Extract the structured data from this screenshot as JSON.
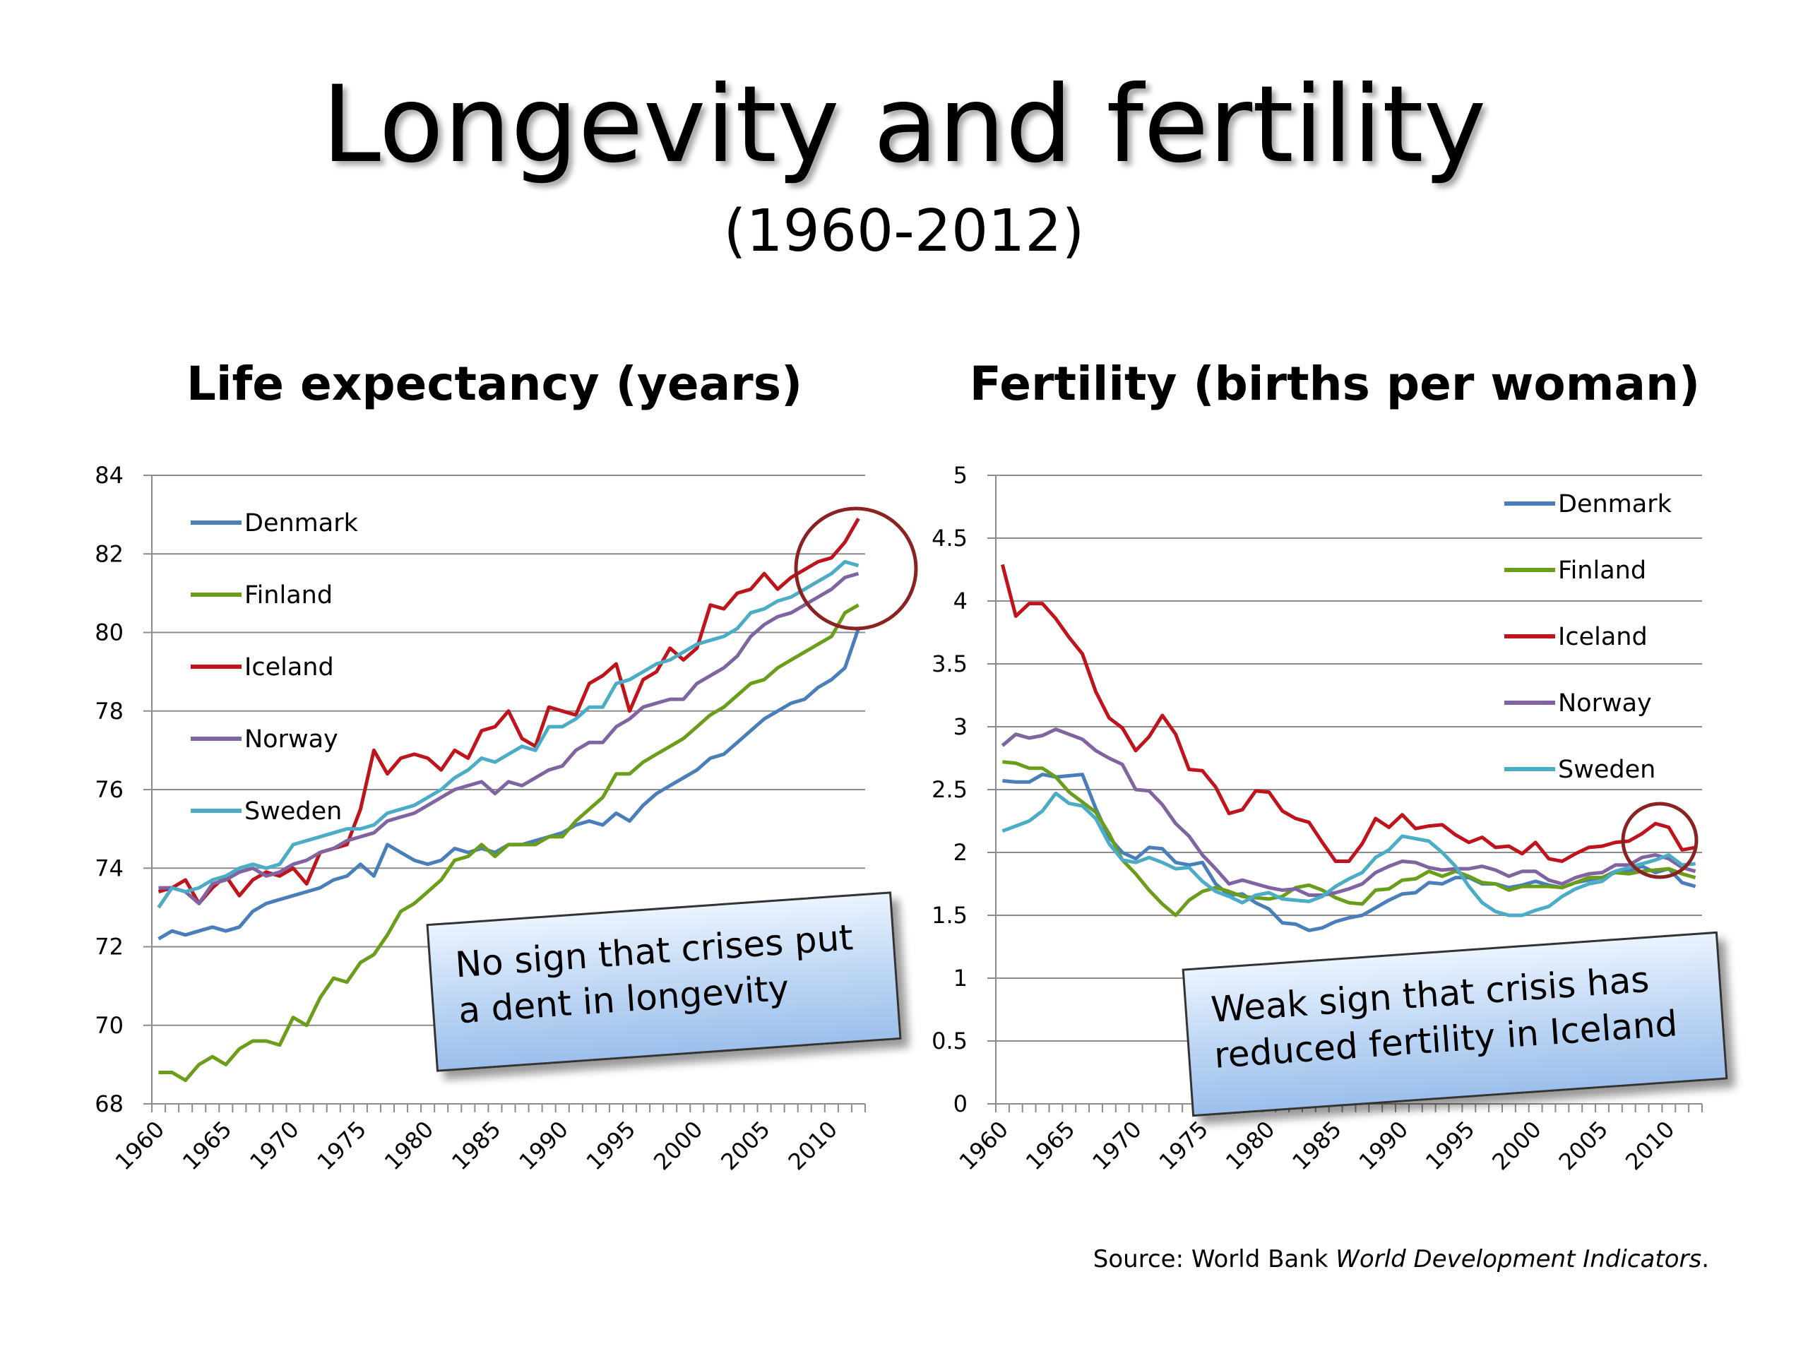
{
  "title": "Longevity and fertility",
  "subtitle": "(1960-2012)",
  "source": {
    "prefix": "Source: World Bank ",
    "italic": "World Development Indicators",
    "suffix": "."
  },
  "colors": {
    "Denmark": "#4a7ebb",
    "Finland": "#6a9e1a",
    "Iceland": "#c0141c",
    "Norway": "#8064a2",
    "Sweden": "#4bacc6",
    "circle": "#8b2222"
  },
  "callouts": {
    "left": "No sign that crises put a dent in longevity",
    "right": "Weak sign that crisis has reduced fertility in Iceland"
  },
  "chart_data": [
    {
      "type": "line",
      "title": "Life expectancy (years)",
      "xlabel": "",
      "ylabel": "",
      "x_start": 1960,
      "x_end": 2012,
      "xticks": [
        "1960",
        "1965",
        "1970",
        "1975",
        "1980",
        "1985",
        "1990",
        "1995",
        "2000",
        "2005",
        "2010"
      ],
      "ylim": [
        68,
        84
      ],
      "yticks": [
        "68",
        "70",
        "72",
        "74",
        "76",
        "78",
        "80",
        "82",
        "84"
      ],
      "grid": true,
      "legend": "top-left",
      "series": [
        {
          "name": "Denmark",
          "values": [
            72.2,
            72.4,
            72.3,
            72.4,
            72.5,
            72.4,
            72.5,
            72.9,
            73.1,
            73.2,
            73.3,
            73.4,
            73.5,
            73.7,
            73.8,
            74.1,
            73.8,
            74.6,
            74.4,
            74.2,
            74.1,
            74.2,
            74.5,
            74.4,
            74.5,
            74.4,
            74.6,
            74.6,
            74.7,
            74.8,
            74.9,
            75.1,
            75.2,
            75.1,
            75.4,
            75.2,
            75.6,
            75.9,
            76.1,
            76.3,
            76.5,
            76.8,
            76.9,
            77.2,
            77.5,
            77.8,
            78.0,
            78.2,
            78.3,
            78.6,
            78.8,
            79.1,
            80.1
          ]
        },
        {
          "name": "Finland",
          "values": [
            68.8,
            68.8,
            68.6,
            69.0,
            69.2,
            69.0,
            69.4,
            69.6,
            69.6,
            69.5,
            70.2,
            70.0,
            70.7,
            71.2,
            71.1,
            71.6,
            71.8,
            72.3,
            72.9,
            73.1,
            73.4,
            73.7,
            74.2,
            74.3,
            74.6,
            74.3,
            74.6,
            74.6,
            74.6,
            74.8,
            74.8,
            75.2,
            75.5,
            75.8,
            76.4,
            76.4,
            76.7,
            76.9,
            77.1,
            77.3,
            77.6,
            77.9,
            78.1,
            78.4,
            78.7,
            78.8,
            79.1,
            79.3,
            79.5,
            79.7,
            79.9,
            80.5,
            80.7
          ]
        },
        {
          "name": "Iceland",
          "values": [
            73.4,
            73.5,
            73.7,
            73.1,
            73.5,
            73.8,
            73.3,
            73.7,
            73.9,
            73.8,
            74.0,
            73.6,
            74.4,
            74.5,
            74.6,
            75.5,
            77.0,
            76.4,
            76.8,
            76.9,
            76.8,
            76.5,
            77.0,
            76.8,
            77.5,
            77.6,
            78.0,
            77.3,
            77.1,
            78.1,
            78.0,
            77.9,
            78.7,
            78.9,
            79.2,
            78.0,
            78.8,
            79.0,
            79.6,
            79.3,
            79.6,
            80.7,
            80.6,
            81.0,
            81.1,
            81.5,
            81.1,
            81.4,
            81.6,
            81.8,
            81.9,
            82.3,
            82.9
          ]
        },
        {
          "name": "Norway",
          "values": [
            73.5,
            73.5,
            73.4,
            73.1,
            73.6,
            73.7,
            73.9,
            74.0,
            73.8,
            73.9,
            74.1,
            74.2,
            74.4,
            74.5,
            74.7,
            74.8,
            74.9,
            75.2,
            75.3,
            75.4,
            75.6,
            75.8,
            76.0,
            76.1,
            76.2,
            75.9,
            76.2,
            76.1,
            76.3,
            76.5,
            76.6,
            77.0,
            77.2,
            77.2,
            77.6,
            77.8,
            78.1,
            78.2,
            78.3,
            78.3,
            78.7,
            78.9,
            79.1,
            79.4,
            79.9,
            80.2,
            80.4,
            80.5,
            80.7,
            80.9,
            81.1,
            81.4,
            81.5
          ]
        },
        {
          "name": "Sweden",
          "values": [
            73.0,
            73.5,
            73.4,
            73.5,
            73.7,
            73.8,
            74.0,
            74.1,
            74.0,
            74.1,
            74.6,
            74.7,
            74.8,
            74.9,
            75.0,
            75.0,
            75.1,
            75.4,
            75.5,
            75.6,
            75.8,
            76.0,
            76.3,
            76.5,
            76.8,
            76.7,
            76.9,
            77.1,
            77.0,
            77.6,
            77.6,
            77.8,
            78.1,
            78.1,
            78.7,
            78.8,
            79.0,
            79.2,
            79.3,
            79.5,
            79.7,
            79.8,
            79.9,
            80.1,
            80.5,
            80.6,
            80.8,
            80.9,
            81.1,
            81.3,
            81.5,
            81.8,
            81.7
          ]
        }
      ]
    },
    {
      "type": "line",
      "title": "Fertility (births per woman)",
      "xlabel": "",
      "ylabel": "",
      "x_start": 1960,
      "x_end": 2012,
      "xticks": [
        "1960",
        "1965",
        "1970",
        "1975",
        "1980",
        "1985",
        "1990",
        "1995",
        "2000",
        "2005",
        "2010"
      ],
      "ylim": [
        0,
        5
      ],
      "yticks": [
        "0",
        "0.5",
        "1",
        "1.5",
        "2",
        "2.5",
        "3",
        "3.5",
        "4",
        "4.5",
        "5"
      ],
      "grid": true,
      "legend": "top-right",
      "series": [
        {
          "name": "Denmark",
          "values": [
            2.57,
            2.56,
            2.56,
            2.62,
            2.6,
            2.61,
            2.62,
            2.35,
            2.12,
            2.0,
            1.95,
            2.04,
            2.03,
            1.92,
            1.9,
            1.92,
            1.75,
            1.66,
            1.67,
            1.6,
            1.55,
            1.44,
            1.43,
            1.38,
            1.4,
            1.45,
            1.48,
            1.5,
            1.56,
            1.62,
            1.67,
            1.68,
            1.76,
            1.75,
            1.8,
            1.8,
            1.75,
            1.75,
            1.72,
            1.74,
            1.77,
            1.74,
            1.72,
            1.76,
            1.78,
            1.8,
            1.85,
            1.85,
            1.89,
            1.84,
            1.87,
            1.76,
            1.73
          ]
        },
        {
          "name": "Finland",
          "values": [
            2.72,
            2.71,
            2.67,
            2.67,
            2.6,
            2.48,
            2.4,
            2.32,
            2.15,
            1.94,
            1.83,
            1.7,
            1.59,
            1.5,
            1.62,
            1.69,
            1.72,
            1.69,
            1.65,
            1.64,
            1.63,
            1.65,
            1.72,
            1.74,
            1.7,
            1.64,
            1.6,
            1.59,
            1.7,
            1.71,
            1.78,
            1.79,
            1.85,
            1.81,
            1.85,
            1.81,
            1.76,
            1.75,
            1.7,
            1.73,
            1.73,
            1.73,
            1.72,
            1.76,
            1.8,
            1.8,
            1.84,
            1.83,
            1.85,
            1.86,
            1.87,
            1.83,
            1.8
          ]
        },
        {
          "name": "Iceland",
          "values": [
            4.29,
            3.88,
            3.98,
            3.98,
            3.86,
            3.71,
            3.58,
            3.28,
            3.07,
            2.99,
            2.81,
            2.92,
            3.09,
            2.94,
            2.66,
            2.65,
            2.52,
            2.31,
            2.34,
            2.49,
            2.48,
            2.33,
            2.27,
            2.24,
            2.08,
            1.93,
            1.93,
            2.07,
            2.27,
            2.2,
            2.3,
            2.19,
            2.21,
            2.22,
            2.14,
            2.08,
            2.12,
            2.04,
            2.05,
            1.99,
            2.08,
            1.95,
            1.93,
            1.99,
            2.04,
            2.05,
            2.08,
            2.09,
            2.15,
            2.23,
            2.2,
            2.02,
            2.04
          ]
        },
        {
          "name": "Norway",
          "values": [
            2.85,
            2.94,
            2.91,
            2.93,
            2.98,
            2.94,
            2.9,
            2.81,
            2.75,
            2.7,
            2.5,
            2.49,
            2.38,
            2.23,
            2.13,
            1.98,
            1.87,
            1.75,
            1.78,
            1.75,
            1.72,
            1.7,
            1.71,
            1.66,
            1.66,
            1.68,
            1.71,
            1.75,
            1.84,
            1.89,
            1.93,
            1.92,
            1.88,
            1.86,
            1.87,
            1.87,
            1.89,
            1.86,
            1.81,
            1.85,
            1.85,
            1.78,
            1.75,
            1.8,
            1.83,
            1.84,
            1.9,
            1.9,
            1.96,
            1.98,
            1.95,
            1.88,
            1.85
          ]
        },
        {
          "name": "Sweden",
          "values": [
            2.17,
            2.21,
            2.25,
            2.33,
            2.47,
            2.39,
            2.37,
            2.27,
            2.07,
            1.94,
            1.92,
            1.96,
            1.92,
            1.87,
            1.88,
            1.77,
            1.69,
            1.65,
            1.6,
            1.66,
            1.68,
            1.63,
            1.62,
            1.61,
            1.65,
            1.73,
            1.79,
            1.84,
            1.96,
            2.02,
            2.13,
            2.11,
            2.09,
            2.0,
            1.89,
            1.73,
            1.6,
            1.53,
            1.5,
            1.5,
            1.54,
            1.57,
            1.65,
            1.71,
            1.75,
            1.77,
            1.85,
            1.88,
            1.91,
            1.94,
            1.98,
            1.9,
            1.91
          ]
        }
      ]
    }
  ]
}
